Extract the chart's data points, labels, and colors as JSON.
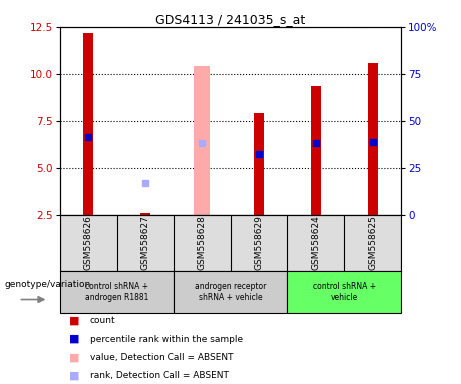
{
  "title": "GDS4113 / 241035_s_at",
  "samples": [
    "GSM558626",
    "GSM558627",
    "GSM558628",
    "GSM558629",
    "GSM558624",
    "GSM558625"
  ],
  "red_bars": [
    12.2,
    2.6,
    null,
    7.9,
    9.35,
    10.6
  ],
  "blue_squares": [
    6.65,
    null,
    null,
    5.75,
    6.35,
    6.4
  ],
  "pink_bars": [
    null,
    null,
    10.4,
    null,
    null,
    null
  ],
  "lavender_squares": [
    null,
    4.2,
    6.35,
    null,
    null,
    null
  ],
  "ylim": [
    2.5,
    12.5
  ],
  "yticks_left": [
    2.5,
    5.0,
    7.5,
    10.0,
    12.5
  ],
  "yticks_right": [
    0,
    25,
    50,
    75,
    100
  ],
  "ylabel_left_color": "#cc0000",
  "ylabel_right_color": "#0000cc",
  "bar_width": 0.18,
  "pink_bar_width": 0.28,
  "marker_size": 5,
  "bg_plot": "#ffffff",
  "bg_samples": "#dddddd",
  "bg_group_green": "#66ff66",
  "bg_group_gray": "#cccccc",
  "group_spans": [
    [
      0,
      1,
      "#cccccc",
      "control shRNA +\nandrogen R1881"
    ],
    [
      2,
      3,
      "#cccccc",
      "androgen receptor\nshRNA + vehicle"
    ],
    [
      4,
      5,
      "#66ff66",
      "control shRNA +\nvehicle"
    ]
  ],
  "legend_items": [
    [
      "#cc0000",
      "count"
    ],
    [
      "#0000cc",
      "percentile rank within the sample"
    ],
    [
      "#ffaaaa",
      "value, Detection Call = ABSENT"
    ],
    [
      "#aaaaff",
      "rank, Detection Call = ABSENT"
    ]
  ]
}
